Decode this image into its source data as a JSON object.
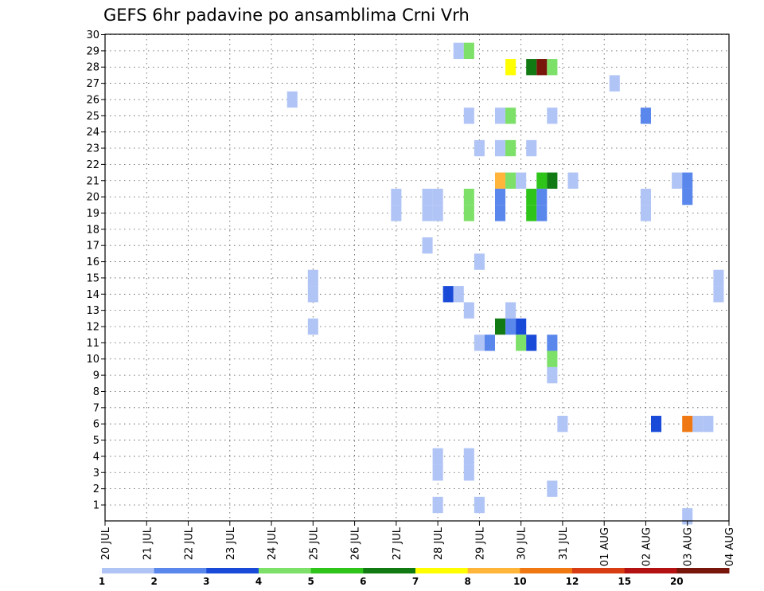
{
  "chart_data": {
    "type": "heatmap",
    "title": "GEFS 6hr padavine po ansamblima Crni Vrh",
    "xlabel": "",
    "ylabel": "",
    "x_ticks": [
      "20 JUL",
      "21 JUL",
      "22 JUL",
      "23 JUL",
      "24 JUL",
      "25 JUL",
      "26 JUL",
      "27 JUL",
      "28 JUL",
      "29 JUL",
      "30 JUL",
      "31 JUL",
      "01 AUG",
      "02 AUG",
      "03 AUG",
      "04 AUG"
    ],
    "y_ticks": [
      "1",
      "2",
      "3",
      "4",
      "5",
      "6",
      "7",
      "8",
      "9",
      "10",
      "11",
      "12",
      "13",
      "14",
      "15",
      "16",
      "17",
      "18",
      "19",
      "20",
      "21",
      "22",
      "23",
      "24",
      "25",
      "26",
      "27",
      "28",
      "29",
      "30"
    ],
    "xlim": [
      0,
      60
    ],
    "ylim": [
      0.5,
      30.5
    ],
    "x_unit": "6-hour steps from 20 JUL 00z",
    "y_unit": "ensemble member",
    "grid": true,
    "legend_position": "bottom colorbar",
    "colorbar": {
      "tick_labels": [
        "1",
        "2",
        "3",
        "4",
        "5",
        "6",
        "7",
        "8",
        "10",
        "12",
        "15",
        "20"
      ],
      "colors": [
        "#b0c4f5",
        "#5a87ec",
        "#1a4ad8",
        "#7de068",
        "#2ec41a",
        "#127a12",
        "#ffff00",
        "#ffb43a",
        "#f07812",
        "#d83c12",
        "#b41212",
        "#78160c"
      ]
    },
    "cells": [
      {
        "x": 18,
        "y": 26,
        "c": 0
      },
      {
        "x": 20,
        "y": 15,
        "c": 0
      },
      {
        "x": 20,
        "y": 14,
        "c": 0
      },
      {
        "x": 20,
        "y": 12,
        "c": 0
      },
      {
        "x": 28,
        "y": 20,
        "c": 0
      },
      {
        "x": 28,
        "y": 19,
        "c": 0
      },
      {
        "x": 31,
        "y": 20,
        "c": 0
      },
      {
        "x": 31,
        "y": 19,
        "c": 0
      },
      {
        "x": 31,
        "y": 17,
        "c": 0
      },
      {
        "x": 32,
        "y": 20,
        "c": 0
      },
      {
        "x": 32,
        "y": 19,
        "c": 0
      },
      {
        "x": 32,
        "y": 4,
        "c": 0
      },
      {
        "x": 32,
        "y": 3,
        "c": 0
      },
      {
        "x": 32,
        "y": 1,
        "c": 0
      },
      {
        "x": 33,
        "y": 14,
        "c": 2
      },
      {
        "x": 34,
        "y": 29,
        "c": 0
      },
      {
        "x": 34,
        "y": 14,
        "c": 0
      },
      {
        "x": 35,
        "y": 29,
        "c": 3
      },
      {
        "x": 35,
        "y": 25,
        "c": 0
      },
      {
        "x": 35,
        "y": 20,
        "c": 3
      },
      {
        "x": 35,
        "y": 19,
        "c": 3
      },
      {
        "x": 35,
        "y": 13,
        "c": 0
      },
      {
        "x": 35,
        "y": 4,
        "c": 0
      },
      {
        "x": 35,
        "y": 3,
        "c": 0
      },
      {
        "x": 36,
        "y": 23,
        "c": 0
      },
      {
        "x": 36,
        "y": 16,
        "c": 0
      },
      {
        "x": 36,
        "y": 11,
        "c": 0
      },
      {
        "x": 36,
        "y": 1,
        "c": 0
      },
      {
        "x": 37,
        "y": 11,
        "c": 1
      },
      {
        "x": 38,
        "y": 25,
        "c": 0
      },
      {
        "x": 38,
        "y": 23,
        "c": 0
      },
      {
        "x": 38,
        "y": 21,
        "c": 7
      },
      {
        "x": 38,
        "y": 20,
        "c": 1
      },
      {
        "x": 38,
        "y": 19,
        "c": 1
      },
      {
        "x": 38,
        "y": 12,
        "c": 5
      },
      {
        "x": 39,
        "y": 28,
        "c": 6
      },
      {
        "x": 39,
        "y": 25,
        "c": 3
      },
      {
        "x": 39,
        "y": 23,
        "c": 3
      },
      {
        "x": 39,
        "y": 21,
        "c": 3
      },
      {
        "x": 39,
        "y": 13,
        "c": 0
      },
      {
        "x": 39,
        "y": 12,
        "c": 1
      },
      {
        "x": 40,
        "y": 21,
        "c": 0
      },
      {
        "x": 40,
        "y": 12,
        "c": 2
      },
      {
        "x": 40,
        "y": 11,
        "c": 3
      },
      {
        "x": 41,
        "y": 28,
        "c": 5
      },
      {
        "x": 41,
        "y": 23,
        "c": 0
      },
      {
        "x": 41,
        "y": 20,
        "c": 4
      },
      {
        "x": 41,
        "y": 19,
        "c": 4
      },
      {
        "x": 41,
        "y": 11,
        "c": 2
      },
      {
        "x": 42,
        "y": 28,
        "c": 11
      },
      {
        "x": 42,
        "y": 21,
        "c": 4
      },
      {
        "x": 42,
        "y": 20,
        "c": 1
      },
      {
        "x": 42,
        "y": 19,
        "c": 1
      },
      {
        "x": 43,
        "y": 28,
        "c": 3
      },
      {
        "x": 43,
        "y": 25,
        "c": 0
      },
      {
        "x": 43,
        "y": 21,
        "c": 5
      },
      {
        "x": 43,
        "y": 11,
        "c": 1
      },
      {
        "x": 43,
        "y": 10,
        "c": 3
      },
      {
        "x": 43,
        "y": 9,
        "c": 0
      },
      {
        "x": 43,
        "y": 2,
        "c": 0
      },
      {
        "x": 44,
        "y": 6,
        "c": 0
      },
      {
        "x": 45,
        "y": 21,
        "c": 0
      },
      {
        "x": 49,
        "y": 27,
        "c": 0
      },
      {
        "x": 52,
        "y": 25,
        "c": 1
      },
      {
        "x": 52,
        "y": 20,
        "c": 0
      },
      {
        "x": 52,
        "y": 19,
        "c": 0
      },
      {
        "x": 53,
        "y": 6,
        "c": 2
      },
      {
        "x": 55,
        "y": 21,
        "c": 0
      },
      {
        "x": 56,
        "y": 21,
        "c": 1
      },
      {
        "x": 56,
        "y": 20,
        "c": 1
      },
      {
        "x": 56,
        "y": 6,
        "c": 8
      },
      {
        "x": 56,
        "y": 0.3,
        "c": 0
      },
      {
        "x": 57,
        "y": 6,
        "c": 0
      },
      {
        "x": 58,
        "y": 6,
        "c": 0
      },
      {
        "x": 59,
        "y": 15,
        "c": 0
      },
      {
        "x": 59,
        "y": 14,
        "c": 0
      }
    ]
  }
}
